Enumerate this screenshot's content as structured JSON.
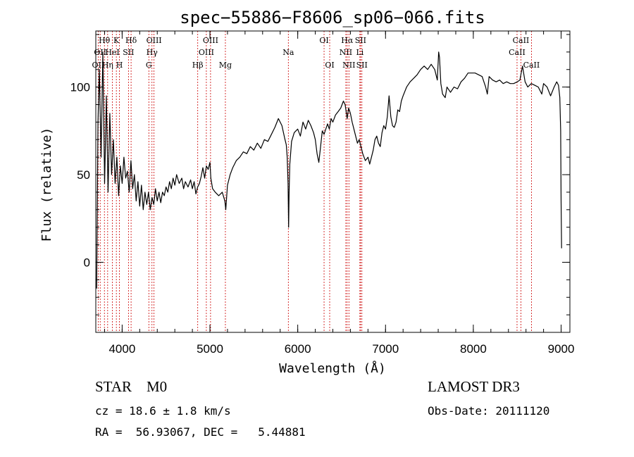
{
  "chart_data": {
    "type": "line",
    "title": "spec−55886−F8606_sp06−066.fits",
    "xlabel": "Wavelength (Å)",
    "ylabel": "Flux (relative)",
    "xlim": [
      3700,
      9100
    ],
    "ylim": [
      -40,
      132
    ],
    "xticks": [
      4000,
      5000,
      6000,
      7000,
      8000,
      9000
    ],
    "yticks": [
      0,
      50,
      100
    ],
    "x_minor_step": 200,
    "y_minor_step": 10,
    "series": [
      {
        "name": "flux",
        "points": [
          [
            3710,
            -15
          ],
          [
            3725,
            80
          ],
          [
            3740,
            110
          ],
          [
            3760,
            60
          ],
          [
            3780,
            120
          ],
          [
            3800,
            45
          ],
          [
            3820,
            95
          ],
          [
            3840,
            40
          ],
          [
            3860,
            85
          ],
          [
            3880,
            50
          ],
          [
            3900,
            70
          ],
          [
            3920,
            45
          ],
          [
            3940,
            60
          ],
          [
            3960,
            38
          ],
          [
            3980,
            55
          ],
          [
            4000,
            45
          ],
          [
            4020,
            60
          ],
          [
            4040,
            48
          ],
          [
            4060,
            52
          ],
          [
            4080,
            40
          ],
          [
            4100,
            58
          ],
          [
            4120,
            42
          ],
          [
            4140,
            50
          ],
          [
            4160,
            35
          ],
          [
            4180,
            46
          ],
          [
            4200,
            32
          ],
          [
            4220,
            44
          ],
          [
            4240,
            30
          ],
          [
            4260,
            40
          ],
          [
            4280,
            33
          ],
          [
            4300,
            40
          ],
          [
            4320,
            30
          ],
          [
            4340,
            37
          ],
          [
            4360,
            33
          ],
          [
            4380,
            42
          ],
          [
            4400,
            35
          ],
          [
            4420,
            40
          ],
          [
            4440,
            34
          ],
          [
            4460,
            40
          ],
          [
            4480,
            38
          ],
          [
            4500,
            43
          ],
          [
            4520,
            40
          ],
          [
            4540,
            46
          ],
          [
            4560,
            42
          ],
          [
            4580,
            48
          ],
          [
            4600,
            44
          ],
          [
            4620,
            50
          ],
          [
            4650,
            45
          ],
          [
            4680,
            48
          ],
          [
            4700,
            42
          ],
          [
            4720,
            46
          ],
          [
            4750,
            43
          ],
          [
            4780,
            47
          ],
          [
            4800,
            42
          ],
          [
            4820,
            46
          ],
          [
            4840,
            39
          ],
          [
            4860,
            43
          ],
          [
            4880,
            45
          ],
          [
            4900,
            49
          ],
          [
            4920,
            54
          ],
          [
            4940,
            48
          ],
          [
            4960,
            55
          ],
          [
            4980,
            53
          ],
          [
            5000,
            57
          ],
          [
            5010,
            48
          ],
          [
            5030,
            42
          ],
          [
            5060,
            40
          ],
          [
            5100,
            38
          ],
          [
            5140,
            40
          ],
          [
            5170,
            35
          ],
          [
            5180,
            30
          ],
          [
            5200,
            44
          ],
          [
            5230,
            50
          ],
          [
            5260,
            54
          ],
          [
            5300,
            58
          ],
          [
            5340,
            60
          ],
          [
            5380,
            63
          ],
          [
            5420,
            62
          ],
          [
            5460,
            66
          ],
          [
            5500,
            64
          ],
          [
            5540,
            68
          ],
          [
            5580,
            65
          ],
          [
            5620,
            70
          ],
          [
            5660,
            69
          ],
          [
            5700,
            73
          ],
          [
            5740,
            77
          ],
          [
            5780,
            82
          ],
          [
            5820,
            78
          ],
          [
            5850,
            71
          ],
          [
            5870,
            67
          ],
          [
            5880,
            60
          ],
          [
            5890,
            45
          ],
          [
            5896,
            20
          ],
          [
            5902,
            40
          ],
          [
            5910,
            56
          ],
          [
            5930,
            69
          ],
          [
            5960,
            74
          ],
          [
            6000,
            76
          ],
          [
            6030,
            72
          ],
          [
            6060,
            80
          ],
          [
            6090,
            76
          ],
          [
            6120,
            81
          ],
          [
            6150,
            78
          ],
          [
            6180,
            74
          ],
          [
            6200,
            70
          ],
          [
            6220,
            62
          ],
          [
            6240,
            57
          ],
          [
            6260,
            66
          ],
          [
            6280,
            75
          ],
          [
            6300,
            73
          ],
          [
            6320,
            76
          ],
          [
            6340,
            79
          ],
          [
            6360,
            76
          ],
          [
            6380,
            82
          ],
          [
            6400,
            80
          ],
          [
            6430,
            84
          ],
          [
            6460,
            86
          ],
          [
            6490,
            88
          ],
          [
            6520,
            92
          ],
          [
            6540,
            90
          ],
          [
            6563,
            82
          ],
          [
            6580,
            88
          ],
          [
            6600,
            85
          ],
          [
            6620,
            80
          ],
          [
            6640,
            76
          ],
          [
            6660,
            72
          ],
          [
            6680,
            68
          ],
          [
            6700,
            70
          ],
          [
            6720,
            66
          ],
          [
            6740,
            62
          ],
          [
            6770,
            58
          ],
          [
            6800,
            60
          ],
          [
            6820,
            56
          ],
          [
            6840,
            60
          ],
          [
            6860,
            64
          ],
          [
            6880,
            70
          ],
          [
            6900,
            72
          ],
          [
            6920,
            68
          ],
          [
            6940,
            66
          ],
          [
            6960,
            74
          ],
          [
            6980,
            78
          ],
          [
            7000,
            76
          ],
          [
            7020,
            83
          ],
          [
            7040,
            95
          ],
          [
            7060,
            83
          ],
          [
            7080,
            78
          ],
          [
            7100,
            77
          ],
          [
            7120,
            80
          ],
          [
            7140,
            87
          ],
          [
            7160,
            86
          ],
          [
            7180,
            92
          ],
          [
            7200,
            95
          ],
          [
            7240,
            100
          ],
          [
            7280,
            103
          ],
          [
            7320,
            105
          ],
          [
            7360,
            107
          ],
          [
            7400,
            110
          ],
          [
            7440,
            112
          ],
          [
            7480,
            110
          ],
          [
            7520,
            113
          ],
          [
            7560,
            110
          ],
          [
            7590,
            104
          ],
          [
            7605,
            120
          ],
          [
            7615,
            117
          ],
          [
            7630,
            102
          ],
          [
            7650,
            96
          ],
          [
            7680,
            94
          ],
          [
            7700,
            100
          ],
          [
            7740,
            97
          ],
          [
            7780,
            100
          ],
          [
            7820,
            99
          ],
          [
            7860,
            103
          ],
          [
            7900,
            105
          ],
          [
            7940,
            108
          ],
          [
            7980,
            108
          ],
          [
            8020,
            108
          ],
          [
            8060,
            107
          ],
          [
            8100,
            106
          ],
          [
            8140,
            100
          ],
          [
            8160,
            96
          ],
          [
            8180,
            106
          ],
          [
            8220,
            104
          ],
          [
            8260,
            103
          ],
          [
            8300,
            104
          ],
          [
            8340,
            102
          ],
          [
            8380,
            103
          ],
          [
            8420,
            102
          ],
          [
            8460,
            102
          ],
          [
            8500,
            103
          ],
          [
            8530,
            104
          ],
          [
            8560,
            112
          ],
          [
            8590,
            103
          ],
          [
            8620,
            100
          ],
          [
            8660,
            102
          ],
          [
            8700,
            101
          ],
          [
            8740,
            100
          ],
          [
            8780,
            96
          ],
          [
            8800,
            102
          ],
          [
            8840,
            100
          ],
          [
            8880,
            95
          ],
          [
            8920,
            100
          ],
          [
            8950,
            103
          ],
          [
            8970,
            101
          ],
          [
            8985,
            94
          ],
          [
            8995,
            75
          ],
          [
            9000,
            35
          ],
          [
            9005,
            8
          ]
        ]
      }
    ],
    "lines": [
      {
        "wavelength": 3727,
        "label": "OII",
        "row": 3
      },
      {
        "wavelength": 3750,
        "label": "OII",
        "row": 2
      },
      {
        "wavelength": 3798,
        "label": "Hθ",
        "row": 1
      },
      {
        "wavelength": 3835,
        "label": "Hη",
        "row": 3
      },
      {
        "wavelength": 3889,
        "label": "HeI",
        "row": 2
      },
      {
        "wavelength": 3934,
        "label": "K",
        "row": 1
      },
      {
        "wavelength": 3969,
        "label": "H",
        "row": 3
      },
      {
        "wavelength": 4072,
        "label": "SII",
        "row": 2
      },
      {
        "wavelength": 4102,
        "label": "Hδ",
        "row": 1
      },
      {
        "wavelength": 4304,
        "label": "G",
        "row": 3
      },
      {
        "wavelength": 4340,
        "label": "Hγ",
        "row": 2
      },
      {
        "wavelength": 4363,
        "label": "OIII",
        "row": 1
      },
      {
        "wavelength": 4861,
        "label": "Hβ",
        "row": 3
      },
      {
        "wavelength": 4959,
        "label": "OIII",
        "row": 2
      },
      {
        "wavelength": 5007,
        "label": "OIII",
        "row": 1
      },
      {
        "wavelength": 5176,
        "label": "Mg",
        "row": 3
      },
      {
        "wavelength": 5893,
        "label": "Na",
        "row": 2
      },
      {
        "wavelength": 6300,
        "label": "OI",
        "row": 1
      },
      {
        "wavelength": 6364,
        "label": "OI",
        "row": 3
      },
      {
        "wavelength": 6548,
        "label": "NII",
        "row": 2
      },
      {
        "wavelength": 6563,
        "label": "Hα",
        "row": 1
      },
      {
        "wavelength": 6583,
        "label": "NII",
        "row": 3
      },
      {
        "wavelength": 6708,
        "label": "Li",
        "row": 2
      },
      {
        "wavelength": 6716,
        "label": "SII",
        "row": 1
      },
      {
        "wavelength": 6731,
        "label": "SII",
        "row": 3
      },
      {
        "wavelength": 8498,
        "label": "CaII",
        "row": 2
      },
      {
        "wavelength": 8542,
        "label": "CaII",
        "row": 1
      },
      {
        "wavelength": 8662,
        "label": "CaII",
        "row": 3
      }
    ]
  },
  "info": {
    "class_line": "STAR    M0",
    "survey": "LAMOST DR3",
    "cz_line": "cz = 18.6 ± 1.8 km/s",
    "obs_date": "Obs-Date: 20111120",
    "radec": "RA =  56.93067, DEC =   5.44881"
  },
  "colors": {
    "axis": "#000000",
    "spectrum": "#000000",
    "line_marker": "#cc0000",
    "background": "#ffffff"
  }
}
